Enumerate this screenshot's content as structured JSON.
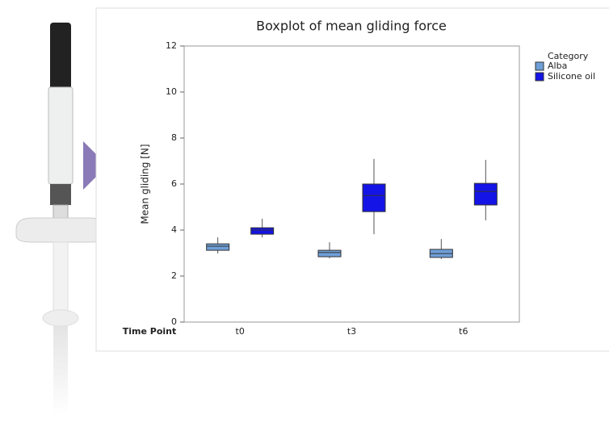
{
  "chart_data": {
    "type": "box",
    "title": "Boxplot of mean gliding force",
    "y_label": "Mean gliding [N]",
    "x_label": "Time Point",
    "legend_title": "Category",
    "categories": [
      "t0",
      "t3",
      "t6"
    ],
    "series": [
      {
        "name": "Alba",
        "color": "#6f9fd8",
        "boxes": [
          {
            "min": 2.98,
            "q1": 3.12,
            "median": 3.3,
            "q3": 3.4,
            "max": 3.68
          },
          {
            "min": 2.77,
            "q1": 2.84,
            "median": 3.02,
            "q3": 3.12,
            "max": 3.47
          },
          {
            "min": 2.74,
            "q1": 2.81,
            "median": 2.98,
            "q3": 3.16,
            "max": 3.61
          }
        ]
      },
      {
        "name": "Silicone oil",
        "color": "#1414e6",
        "boxes": [
          {
            "min": 3.68,
            "q1": 3.82,
            "median": 4.0,
            "q3": 4.1,
            "max": 4.49
          },
          {
            "min": 3.82,
            "q1": 4.8,
            "median": 5.5,
            "q3": 6.0,
            "max": 7.09
          },
          {
            "min": 4.42,
            "q1": 5.09,
            "median": 5.68,
            "q3": 6.03,
            "max": 7.05
          }
        ]
      }
    ],
    "ylim": [
      0,
      12
    ],
    "yticks": [
      0,
      2,
      4,
      6,
      8,
      10,
      12
    ]
  }
}
